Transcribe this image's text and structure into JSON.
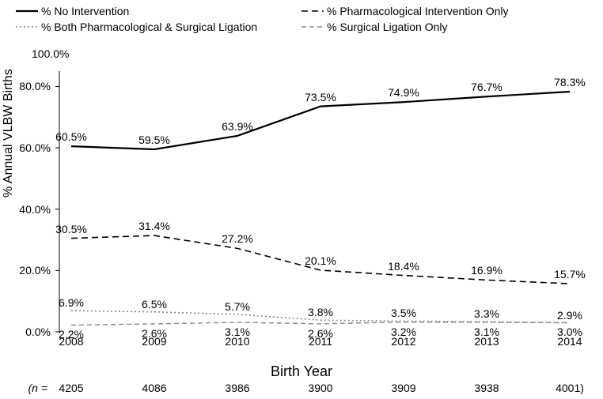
{
  "chart": {
    "type": "line",
    "title_100": "100.0%",
    "ylabel": "% Annual VLBW Births",
    "xlabel": "Birth Year",
    "years": [
      "2008",
      "2009",
      "2010",
      "2011",
      "2012",
      "2013",
      "2014"
    ],
    "n_values": [
      "4205",
      "4086",
      "3986",
      "3900",
      "3909",
      "3938",
      "4001"
    ],
    "n_prefix": "(n = ",
    "n_suffix": ")",
    "yticks": [
      0,
      20,
      40,
      60,
      80
    ],
    "ytick_labels": [
      "0.0%",
      "20.0%",
      "40.0%",
      "60.0%",
      "80.0%"
    ],
    "ylim": [
      0,
      85
    ],
    "colors": {
      "axis": "#000000",
      "series": "#000000",
      "bg": "#ffffff"
    },
    "legend": {
      "s1": "% No Intervention",
      "s2": "% Pharmacological Intervention Only",
      "s3": "% Both Pharmacological & Surgical Ligation",
      "s4": "% Surgical Ligation Only"
    },
    "series": {
      "no_intervention": {
        "values": [
          60.5,
          59.5,
          63.9,
          73.5,
          74.9,
          76.7,
          78.3
        ],
        "labels": [
          "60.5%",
          "59.5%",
          "63.9%",
          "73.5%",
          "74.9%",
          "76.7%",
          "78.3%"
        ],
        "stroke": "#000000",
        "dash": "",
        "width": 2.2
      },
      "pharm_only": {
        "values": [
          30.5,
          31.4,
          27.2,
          20.1,
          18.4,
          16.9,
          15.7
        ],
        "labels": [
          "30.5%",
          "31.4%",
          "27.2%",
          "20.1%",
          "18.4%",
          "16.9%",
          "15.7%"
        ],
        "stroke": "#000000",
        "dash": "8 5",
        "width": 1.6
      },
      "both": {
        "values": [
          6.9,
          6.5,
          5.7,
          3.8,
          3.5,
          3.3,
          2.9
        ],
        "labels": [
          "6.9%",
          "6.5%",
          "5.7%",
          "3.8%",
          "3.5%",
          "3.3%",
          "2.9%"
        ],
        "stroke": "#888888",
        "dash": "2 3",
        "width": 1.6
      },
      "surg_only": {
        "values": [
          2.2,
          2.6,
          3.1,
          2.6,
          3.2,
          3.1,
          3.0
        ],
        "labels": [
          "2.2%",
          "2.6%",
          "3.1%",
          "2.6%",
          "3.2%",
          "3.1%",
          "3.0%"
        ],
        "stroke": "#888888",
        "dash": "6 4",
        "width": 1.4
      }
    }
  }
}
